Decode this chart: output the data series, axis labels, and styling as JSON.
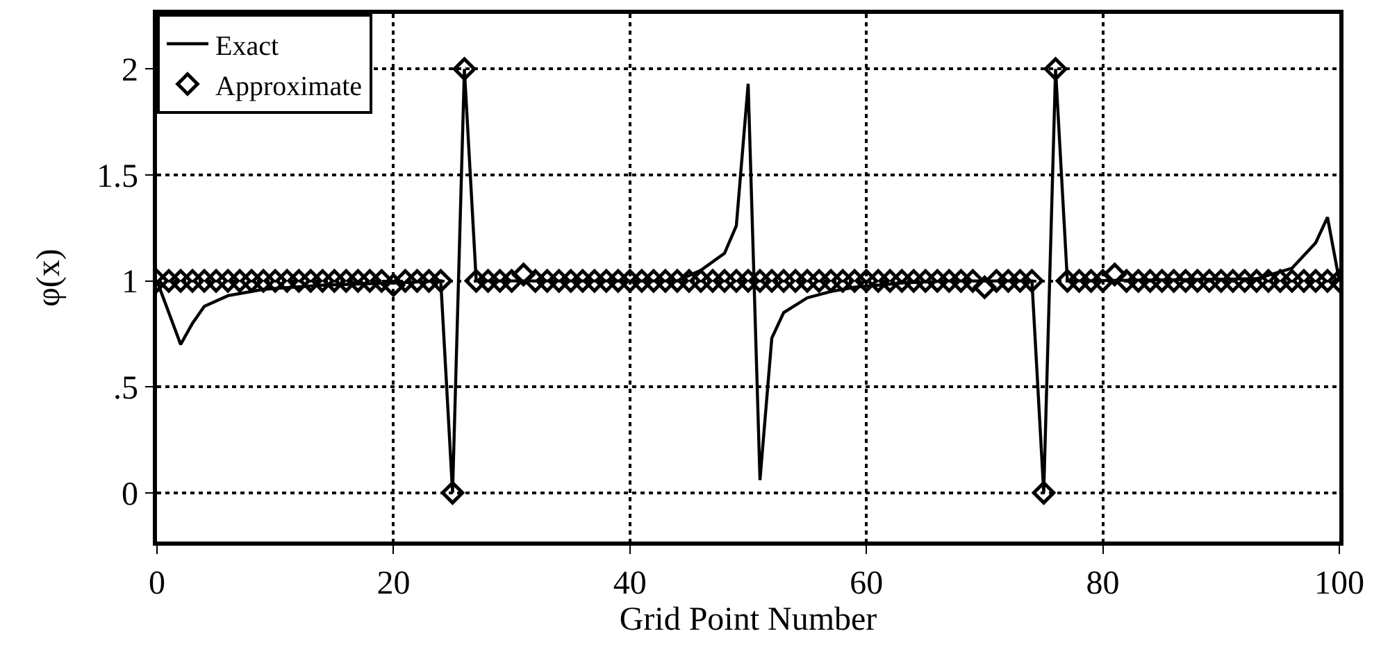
{
  "chart_data": {
    "type": "line",
    "xlabel": "Grid Point Number",
    "ylabel": "φ(x)",
    "xlim": [
      0,
      100
    ],
    "ylim": [
      -0.23,
      2.26
    ],
    "xticks": [
      0,
      20,
      40,
      60,
      80,
      100
    ],
    "yticks": [
      0,
      {
        "value": 0.5,
        "label": ".5"
      },
      1,
      1.5,
      2
    ],
    "grid": true,
    "legend": "top left",
    "series": [
      {
        "name": "Exact",
        "color": "#000000",
        "marker": "none",
        "line_style": "solid",
        "x": [
          0,
          2,
          3,
          4,
          6,
          9,
          14,
          20,
          24,
          25,
          26,
          27,
          44,
          46,
          48,
          49,
          50,
          51,
          52,
          53,
          55,
          57,
          59,
          63,
          67,
          74,
          75,
          76,
          77,
          93,
          96,
          97,
          98,
          99,
          100
        ],
        "values": [
          1,
          0.7,
          0.8,
          0.88,
          0.93,
          0.96,
          0.98,
          0.99,
          1,
          0,
          2,
          1,
          1,
          1.05,
          1.13,
          1.26,
          1.93,
          0.06,
          0.73,
          0.85,
          0.92,
          0.95,
          0.97,
          0.99,
          1,
          1,
          0,
          2,
          1,
          1.01,
          1.06,
          1.12,
          1.18,
          1.3,
          1
        ]
      },
      {
        "name": "Approximate",
        "type": "scatter",
        "color": "#000000",
        "marker": "diamond",
        "x": [
          0,
          1,
          2,
          3,
          4,
          5,
          6,
          7,
          8,
          9,
          10,
          11,
          12,
          13,
          14,
          15,
          16,
          17,
          18,
          19,
          20,
          21,
          22,
          23,
          24,
          25,
          26,
          27,
          28,
          29,
          30,
          31,
          32,
          33,
          34,
          35,
          36,
          37,
          38,
          39,
          40,
          41,
          42,
          43,
          44,
          45,
          46,
          47,
          48,
          49,
          50,
          51,
          52,
          53,
          54,
          55,
          56,
          57,
          58,
          59,
          60,
          61,
          62,
          63,
          64,
          65,
          66,
          67,
          68,
          69,
          70,
          71,
          72,
          73,
          74,
          75,
          76,
          77,
          78,
          79,
          80,
          81,
          82,
          83,
          84,
          85,
          86,
          87,
          88,
          89,
          90,
          91,
          92,
          93,
          94,
          95,
          96,
          97,
          98,
          99,
          100
        ],
        "values": [
          1,
          1,
          1,
          1,
          1,
          1,
          1,
          1,
          1,
          1,
          1,
          1,
          1,
          1,
          1,
          1,
          1,
          1,
          1,
          1,
          0.98,
          1,
          1,
          1,
          1,
          0,
          2,
          1,
          1,
          1,
          1,
          1.03,
          1,
          1,
          1,
          1,
          1,
          1,
          1,
          1,
          1,
          1,
          1,
          1,
          1,
          1,
          1,
          1,
          1,
          1,
          1,
          1,
          1,
          1,
          1,
          1,
          1,
          1,
          1,
          1,
          1,
          1,
          1,
          1,
          1,
          1,
          1,
          1,
          1,
          1,
          0.97,
          1,
          1,
          1,
          1,
          0,
          2,
          1,
          1,
          1,
          1,
          1.03,
          1,
          1,
          1,
          1,
          1,
          1,
          1,
          1,
          1,
          1,
          1,
          1,
          1,
          1,
          1,
          1,
          1,
          1,
          1
        ]
      }
    ]
  }
}
